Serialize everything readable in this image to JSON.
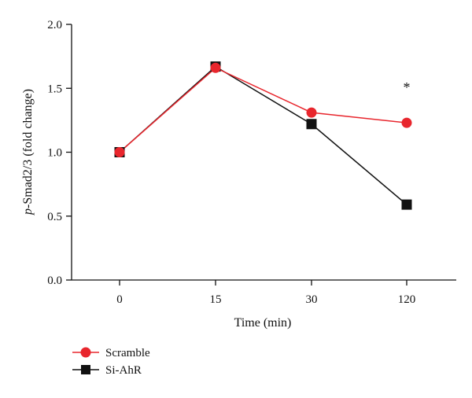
{
  "chart_data": {
    "type": "line",
    "categories": [
      "0",
      "15",
      "30",
      "120"
    ],
    "series": [
      {
        "name": "Scramble",
        "marker": "circle",
        "color": "#e8262d",
        "values": [
          1.0,
          1.66,
          1.31,
          1.23
        ]
      },
      {
        "name": "Si-AhR",
        "marker": "square",
        "color": "#111111",
        "values": [
          1.0,
          1.67,
          1.22,
          0.59
        ]
      }
    ],
    "xlabel": "Time (min)",
    "ylabel_italic": "p",
    "ylabel_rest": "-Smad2/3 (fold change)",
    "ylim": [
      0,
      2.0
    ],
    "yticks": [
      "0.0",
      "0.5",
      "1.0",
      "1.5",
      "2.0"
    ],
    "grid": false,
    "legend_placement": "bottom-left",
    "annotations": [
      {
        "text": "*",
        "category": "120"
      }
    ]
  }
}
